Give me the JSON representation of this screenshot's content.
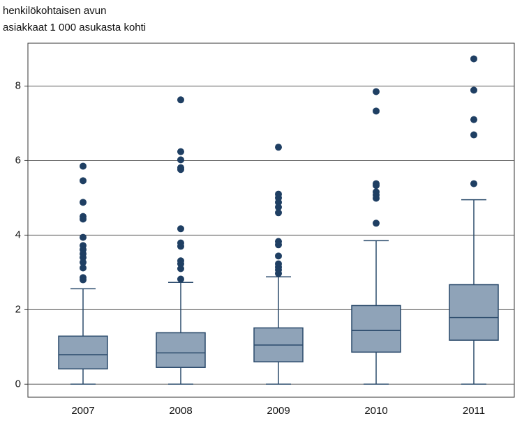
{
  "chart_data": {
    "type": "box",
    "title_lines": [
      "henkilökohtaisen avun",
      "asiakkaat 1 000 asukasta kohti"
    ],
    "categories": [
      "2007",
      "2008",
      "2009",
      "2010",
      "2011"
    ],
    "boxes": [
      {
        "whisker_low": 0,
        "q1": 0.41,
        "median": 0.79,
        "q3": 1.29,
        "whisker_high": 2.56,
        "outliers": [
          5.85,
          5.46,
          4.88,
          4.5,
          4.43,
          3.94,
          3.72,
          3.61,
          3.5,
          3.4,
          3.27,
          3.12,
          2.86,
          2.8
        ]
      },
      {
        "whisker_low": 0,
        "q1": 0.45,
        "median": 0.84,
        "q3": 1.38,
        "whisker_high": 2.73,
        "outliers": [
          7.63,
          6.24,
          6.02,
          5.81,
          5.76,
          4.17,
          3.79,
          3.7,
          3.31,
          3.23,
          3.1,
          2.82
        ]
      },
      {
        "whisker_low": 0,
        "q1": 0.6,
        "median": 1.05,
        "q3": 1.51,
        "whisker_high": 2.88,
        "outliers": [
          6.36,
          5.1,
          5.0,
          4.88,
          4.75,
          4.6,
          3.83,
          3.74,
          3.44,
          3.23,
          3.14,
          3.07,
          2.97
        ]
      },
      {
        "whisker_low": 0,
        "q1": 0.86,
        "median": 1.44,
        "q3": 2.11,
        "whisker_high": 3.85,
        "outliers": [
          7.85,
          7.33,
          5.38,
          5.33,
          5.16,
          5.08,
          4.99,
          4.32
        ]
      },
      {
        "whisker_low": 0,
        "q1": 1.18,
        "median": 1.79,
        "q3": 2.67,
        "whisker_high": 4.95,
        "outliers": [
          8.73,
          7.89,
          7.1,
          6.69,
          5.38
        ]
      }
    ],
    "box_color": "#8fa3b8",
    "line_color": "#2a4a6b",
    "outlier_color": "#1f3f63",
    "ylim": [
      -0.35,
      9.15
    ],
    "yticks": [
      0,
      2,
      4,
      6,
      8
    ],
    "grid": true
  }
}
